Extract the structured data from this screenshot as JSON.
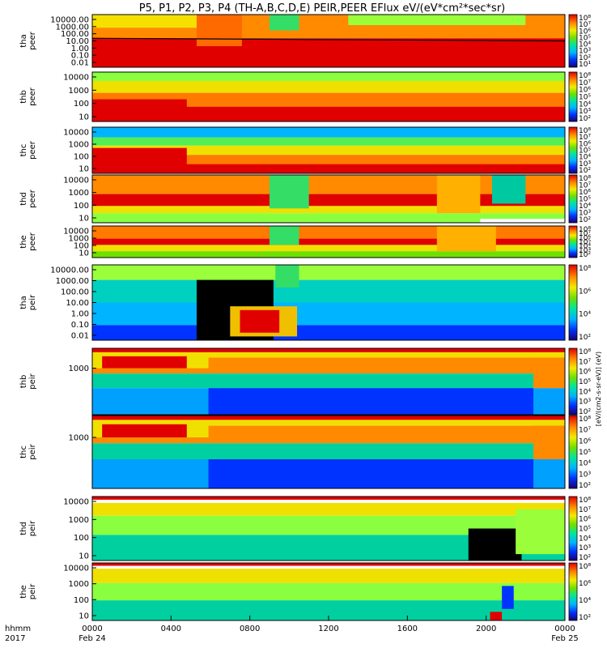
{
  "chart_data": {
    "type": "heatmap",
    "title": "P5, P1, P2, P3, P4 (TH-A,B,C,D,E) PEIR,PEER EFlux eV/(eV*cm²*sec*sr)",
    "colorbar_label": "[eV/(cm2-s-sr-eV)] (eV)",
    "time_axis": {
      "corner_labels": [
        "hhmm",
        "2017"
      ],
      "ticks": [
        {
          "t": 0,
          "label": "0000",
          "date": "Feb 24"
        },
        {
          "t": 4,
          "label": "0400",
          "date": ""
        },
        {
          "t": 8,
          "label": "0800",
          "date": ""
        },
        {
          "t": 12,
          "label": "1200",
          "date": ""
        },
        {
          "t": 16,
          "label": "1600",
          "date": ""
        },
        {
          "t": 20,
          "label": "2000",
          "date": ""
        },
        {
          "t": 24,
          "label": "0000",
          "date": "Feb 25"
        }
      ],
      "range": [
        0,
        24
      ]
    },
    "panels": [
      {
        "ylabel": [
          "tha",
          "peer"
        ],
        "yticks": [
          "10000.00",
          "1000.00",
          "100.00",
          "10.00",
          "1.00",
          "0.10",
          "0.01"
        ],
        "cbticks": [
          "10⁸",
          "10⁷",
          "10⁶",
          "10⁵",
          "10⁴",
          "10³",
          "10²",
          "10¹"
        ],
        "scheme": "peerA"
      },
      {
        "ylabel": [
          "thb",
          "peer"
        ],
        "yticks": [
          "10000",
          "1000",
          "100",
          "10"
        ],
        "cbticks": [
          "10⁸",
          "10⁷",
          "10⁶",
          "10⁵",
          "10⁴",
          "10³",
          "10²"
        ],
        "scheme": "peer"
      },
      {
        "ylabel": [
          "thc",
          "peer"
        ],
        "yticks": [
          "10000",
          "1000",
          "100",
          "10"
        ],
        "cbticks": [
          "10⁸",
          "10⁷",
          "10⁶",
          "10⁵",
          "10⁴",
          "10³",
          "10²"
        ],
        "scheme": "peerC"
      },
      {
        "ylabel": [
          "thd",
          "peer"
        ],
        "yticks": [
          "10000",
          "1000",
          "100",
          "10"
        ],
        "cbticks": [
          "10⁸",
          "10⁷",
          "10⁶",
          "10⁵",
          "10⁴",
          "10³",
          "10²"
        ],
        "scheme": "peerD"
      },
      {
        "ylabel": [
          "the",
          "peer"
        ],
        "yticks": [
          "10000",
          "1000",
          "100",
          "10"
        ],
        "cbticks": [
          "10⁸",
          "10⁷",
          "10⁶",
          "10⁵",
          "10⁴",
          "10³",
          "10²"
        ],
        "scheme": "peerE"
      },
      {
        "ylabel": [
          "tha",
          "peir"
        ],
        "yticks": [
          "10000.00",
          "1000.00",
          "100.00",
          "10.00",
          "1.00",
          "0.10",
          "0.01"
        ],
        "cbticks": [
          "10⁸",
          "10⁶",
          "10⁴",
          "10²"
        ],
        "scheme": "peirA"
      },
      {
        "ylabel": [
          "thb",
          "peir"
        ],
        "yticks": [
          "1000"
        ],
        "cbticks": [
          "10⁸",
          "10⁷",
          "10⁶",
          "10⁵",
          "10⁴",
          "10³",
          "10²"
        ],
        "scheme": "peirB"
      },
      {
        "ylabel": [
          "thc",
          "peir"
        ],
        "yticks": [
          "1000"
        ],
        "cbticks": [
          "10⁸",
          "10⁷",
          "10⁶",
          "10⁵",
          "10⁴",
          "10³",
          "10²"
        ],
        "scheme": "peirB"
      },
      {
        "ylabel": [
          "thd",
          "peir"
        ],
        "yticks": [
          "10000",
          "1000",
          "100",
          "10"
        ],
        "cbticks": [
          "10⁸",
          "10⁷",
          "10⁶",
          "10⁵",
          "10⁴",
          "10³",
          "10²"
        ],
        "scheme": "peirD"
      },
      {
        "ylabel": [
          "the",
          "peir"
        ],
        "yticks": [
          "10000",
          "1000",
          "100",
          "10"
        ],
        "cbticks": [
          "10⁸",
          "10⁶",
          "10⁴",
          "10²"
        ],
        "scheme": "peirE"
      }
    ]
  }
}
